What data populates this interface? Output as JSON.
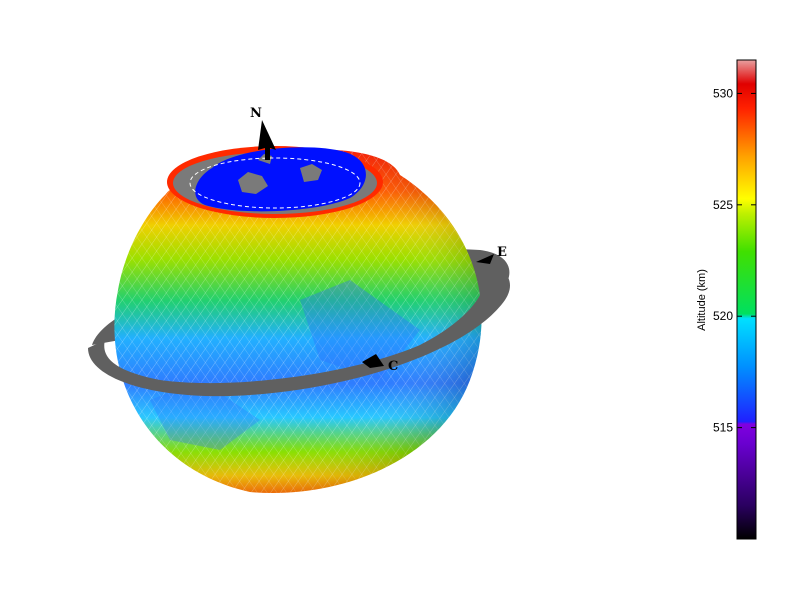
{
  "globe": {
    "direction_labels": {
      "north": "N",
      "east": "E",
      "center": "C"
    }
  },
  "colorbar": {
    "title": "Altitude (km)",
    "range": [
      510,
      531.5
    ],
    "ticks": [
      "515",
      "520",
      "525",
      "530"
    ],
    "tick_values": [
      515,
      520,
      525,
      530
    ]
  },
  "colors": {
    "land": "#7a7a7a",
    "ocean": "#0010ff",
    "ring": "#606060"
  }
}
